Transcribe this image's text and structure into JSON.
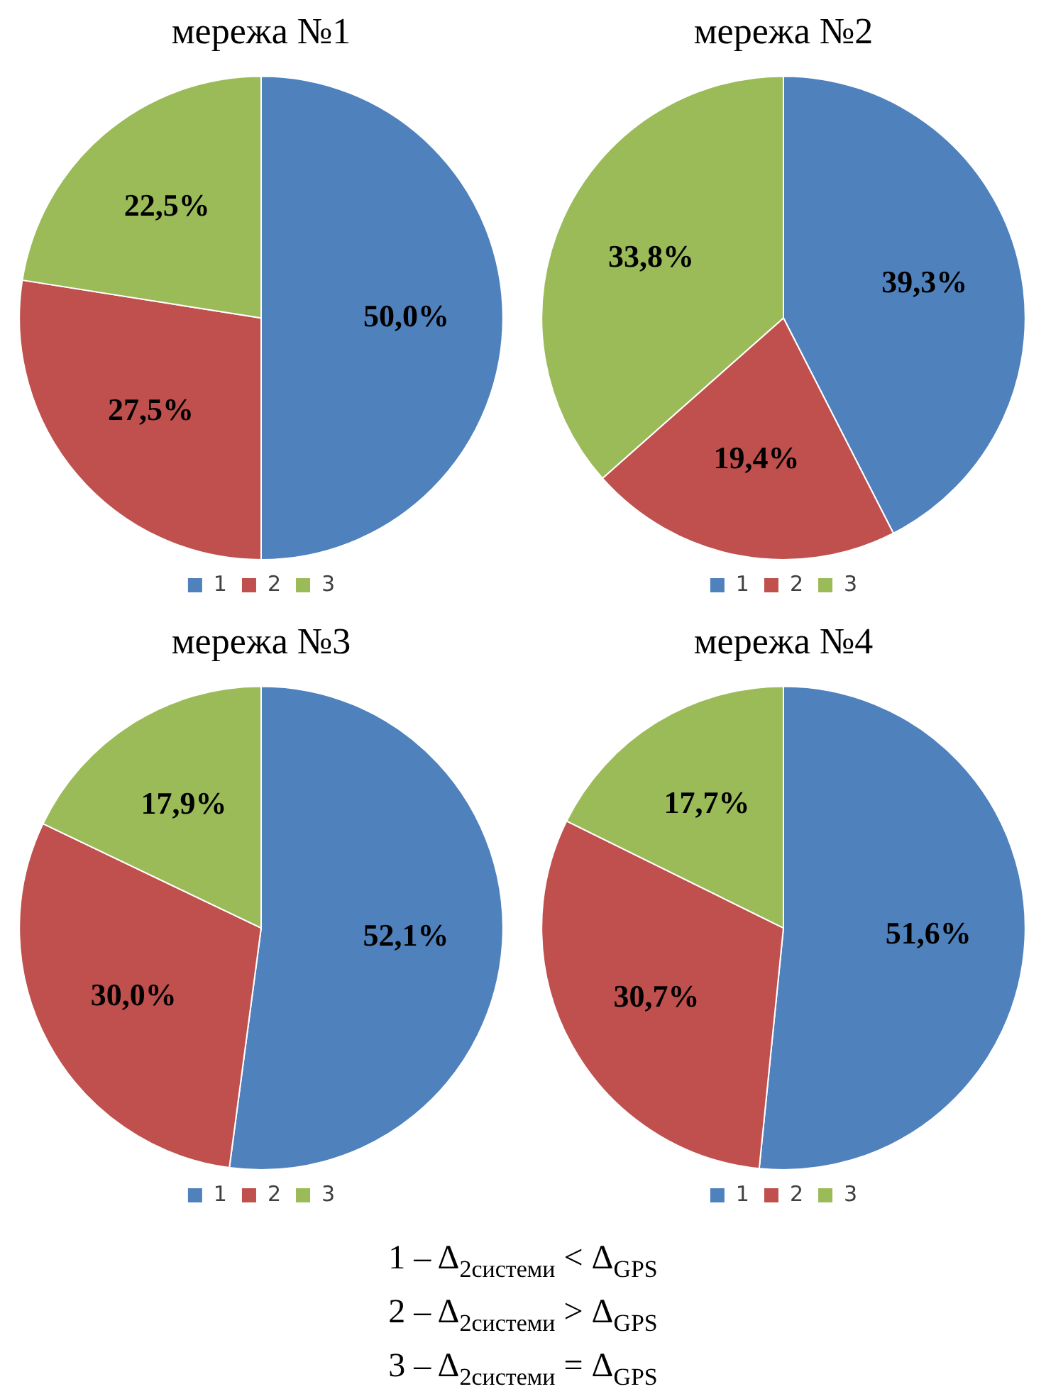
{
  "chart_data": [
    {
      "type": "pie",
      "title": "мережа №1",
      "categories": [
        "1",
        "2",
        "3"
      ],
      "values": [
        50.0,
        27.5,
        22.5
      ],
      "colors": [
        "#4f81bd",
        "#c0504d",
        "#9bbb59"
      ],
      "value_labels": [
        "50,0%",
        "27,5%",
        "22,5%"
      ],
      "legend": "bottom"
    },
    {
      "type": "pie",
      "title": "мережа №2",
      "categories": [
        "1",
        "2",
        "3"
      ],
      "values": [
        39.3,
        19.4,
        33.8
      ],
      "colors": [
        "#4f81bd",
        "#c0504d",
        "#9bbb59"
      ],
      "value_labels": [
        "39,3%",
        "19,4%",
        "33,8%"
      ],
      "legend": "bottom"
    },
    {
      "type": "pie",
      "title": "мережа №3",
      "categories": [
        "1",
        "2",
        "3"
      ],
      "values": [
        52.1,
        30.0,
        17.9
      ],
      "colors": [
        "#4f81bd",
        "#c0504d",
        "#9bbb59"
      ],
      "value_labels": [
        "52,1%",
        "30,0%",
        "17,9%"
      ],
      "legend": "bottom"
    },
    {
      "type": "pie",
      "title": "мережа №4",
      "categories": [
        "1",
        "2",
        "3"
      ],
      "values": [
        51.6,
        30.7,
        17.7
      ],
      "colors": [
        "#4f81bd",
        "#c0504d",
        "#9bbb59"
      ],
      "value_labels": [
        "51,6%",
        "30,7%",
        "17,7%"
      ],
      "legend": "bottom"
    },
    {
      "type": "other",
      "annotations": [
        "1 – Δ$_{2системи}$ < Δ$_{GPS}$",
        "2 – Δ$_{2системи}$ > Δ$_{GPS}$",
        "3 – Δ$_{2системи}$ = Δ$_{GPS}$"
      ]
    }
  ]
}
